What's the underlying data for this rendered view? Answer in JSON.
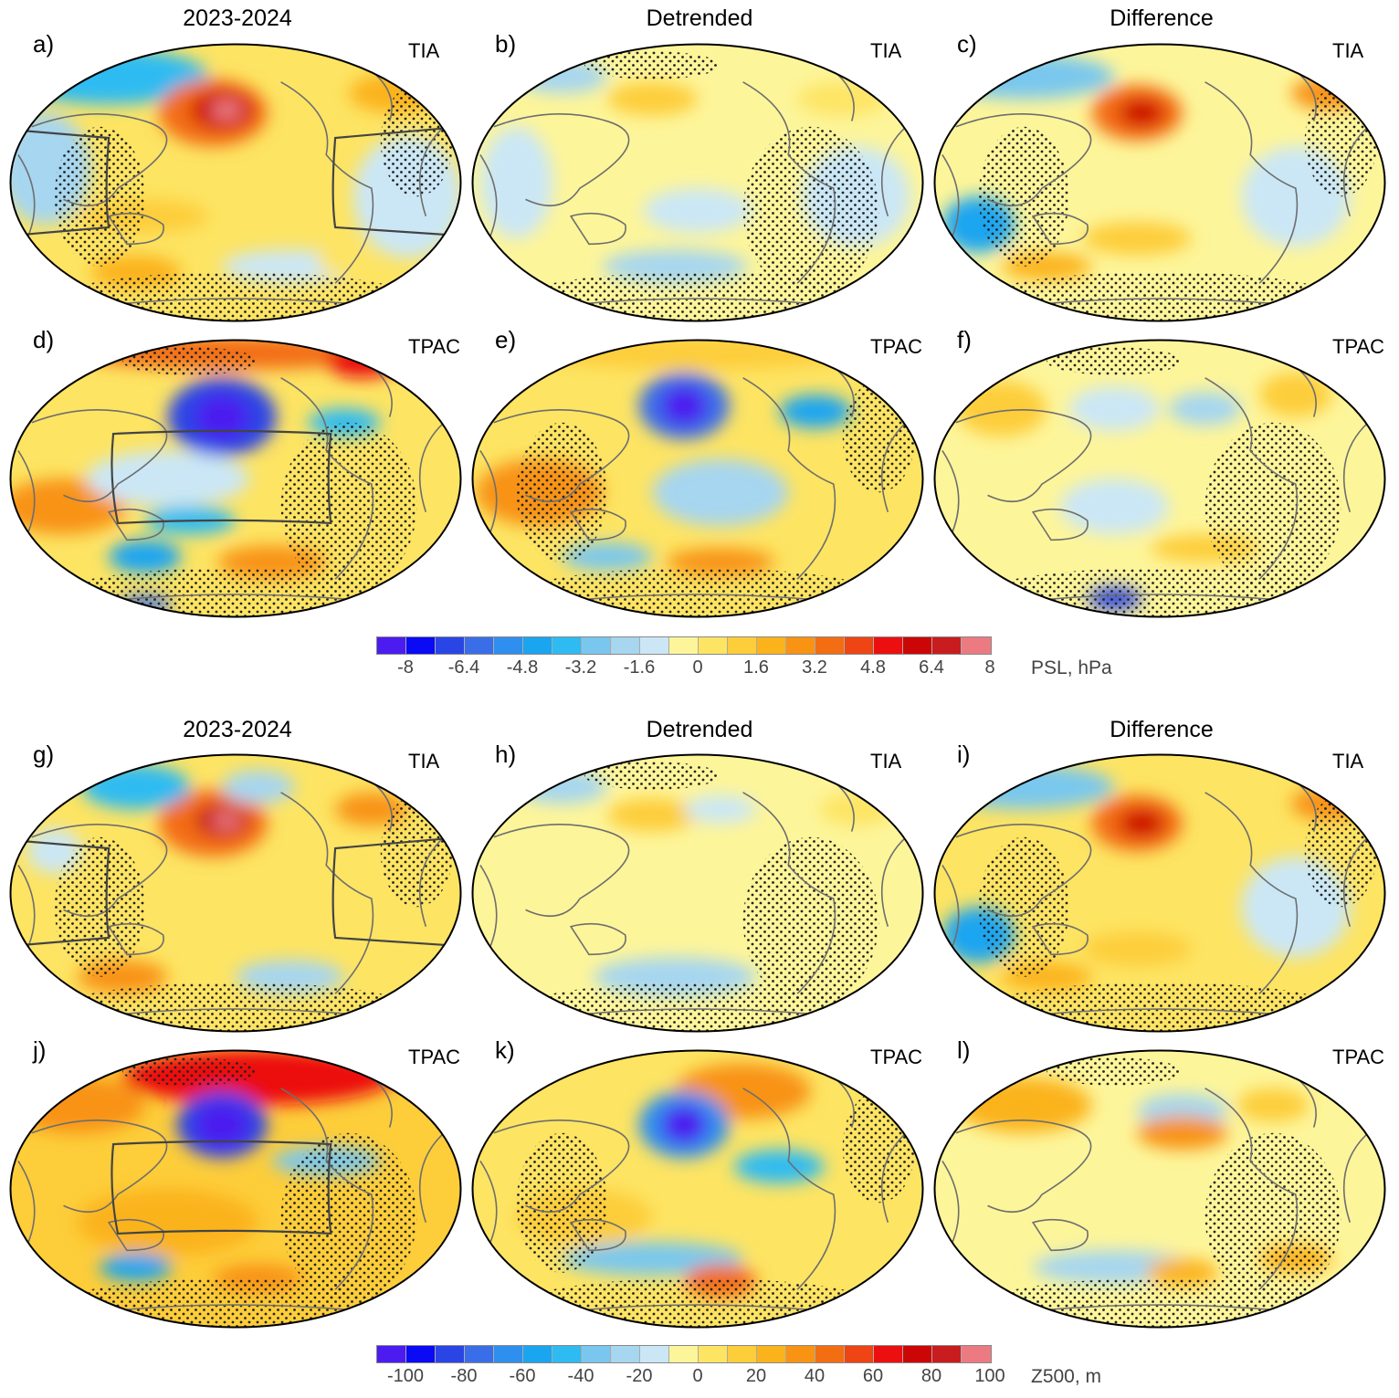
{
  "column_titles": [
    "2023-2024",
    "Detrended",
    "Difference"
  ],
  "panels": [
    {
      "letter": "a)",
      "tag": "TIA"
    },
    {
      "letter": "b)",
      "tag": "TIA"
    },
    {
      "letter": "c)",
      "tag": "TIA"
    },
    {
      "letter": "d)",
      "tag": "TPAC"
    },
    {
      "letter": "e)",
      "tag": "TPAC"
    },
    {
      "letter": "f)",
      "tag": "TPAC"
    },
    {
      "letter": "g)",
      "tag": "TIA"
    },
    {
      "letter": "h)",
      "tag": "TIA"
    },
    {
      "letter": "i)",
      "tag": "TIA"
    },
    {
      "letter": "j)",
      "tag": "TPAC"
    },
    {
      "letter": "k)",
      "tag": "TPAC"
    },
    {
      "letter": "l)",
      "tag": "TPAC"
    }
  ],
  "colorbars": [
    {
      "ticks": [
        "-8",
        "-6.4",
        "-4.8",
        "-3.2",
        "-1.6",
        "0",
        "1.6",
        "3.2",
        "4.8",
        "6.4",
        "8"
      ],
      "unit": "PSL, hPa"
    },
    {
      "ticks": [
        "-100",
        "-80",
        "-60",
        "-40",
        "-20",
        "0",
        "20",
        "40",
        "60",
        "80",
        "100"
      ],
      "unit": "Z500, m"
    }
  ],
  "colors": {
    "scale": [
      "#4b1bf0",
      "#0a0af5",
      "#2a45e6",
      "#3a6ee9",
      "#2f8fee",
      "#1aa5f0",
      "#2dbbf2",
      "#79c7ee",
      "#a6d6f0",
      "#cbe7f6",
      "#fdf59a",
      "#fde463",
      "#fdcd3a",
      "#fbb31c",
      "#f89313",
      "#f36d12",
      "#ef4413",
      "#ec0f0f",
      "#cc0606",
      "#c81c1e",
      "#ec7b81"
    ],
    "coast": "#6e6e6e",
    "outline": "#000000"
  }
}
